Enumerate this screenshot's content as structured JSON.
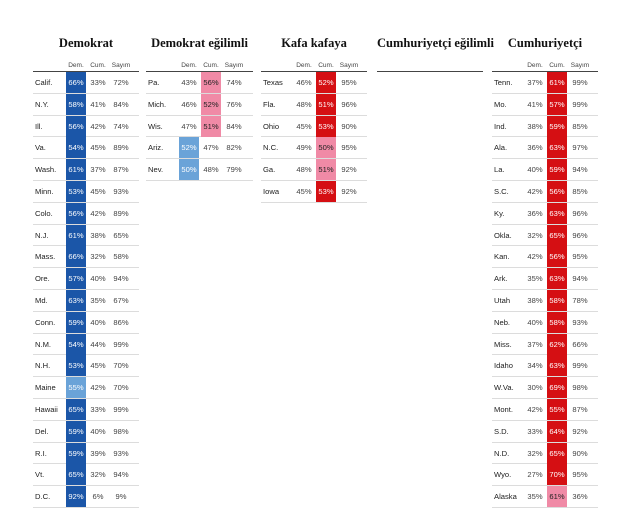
{
  "headers": {
    "dem": "Dem.",
    "rep": "Cum.",
    "count": "Sayım"
  },
  "columns": [
    {
      "title": "Demokrat",
      "rows": [
        {
          "state": "Calif.",
          "dem": "66%",
          "rep": "33%",
          "count": "72%",
          "lead": "dem",
          "shade": "dark"
        },
        {
          "state": "N.Y.",
          "dem": "58%",
          "rep": "41%",
          "count": "84%",
          "lead": "dem",
          "shade": "dark"
        },
        {
          "state": "Ill.",
          "dem": "56%",
          "rep": "42%",
          "count": "74%",
          "lead": "dem",
          "shade": "dark"
        },
        {
          "state": "Va.",
          "dem": "54%",
          "rep": "45%",
          "count": "89%",
          "lead": "dem",
          "shade": "dark"
        },
        {
          "state": "Wash.",
          "dem": "61%",
          "rep": "37%",
          "count": "87%",
          "lead": "dem",
          "shade": "dark"
        },
        {
          "state": "Minn.",
          "dem": "53%",
          "rep": "45%",
          "count": "93%",
          "lead": "dem",
          "shade": "dark"
        },
        {
          "state": "Colo.",
          "dem": "56%",
          "rep": "42%",
          "count": "89%",
          "lead": "dem",
          "shade": "dark"
        },
        {
          "state": "N.J.",
          "dem": "61%",
          "rep": "38%",
          "count": "65%",
          "lead": "dem",
          "shade": "dark"
        },
        {
          "state": "Mass.",
          "dem": "66%",
          "rep": "32%",
          "count": "58%",
          "lead": "dem",
          "shade": "dark"
        },
        {
          "state": "Ore.",
          "dem": "57%",
          "rep": "40%",
          "count": "94%",
          "lead": "dem",
          "shade": "dark"
        },
        {
          "state": "Md.",
          "dem": "63%",
          "rep": "35%",
          "count": "67%",
          "lead": "dem",
          "shade": "dark"
        },
        {
          "state": "Conn.",
          "dem": "59%",
          "rep": "40%",
          "count": "86%",
          "lead": "dem",
          "shade": "dark"
        },
        {
          "state": "N.M.",
          "dem": "54%",
          "rep": "44%",
          "count": "99%",
          "lead": "dem",
          "shade": "dark"
        },
        {
          "state": "N.H.",
          "dem": "53%",
          "rep": "45%",
          "count": "70%",
          "lead": "dem",
          "shade": "dark"
        },
        {
          "state": "Maine",
          "dem": "55%",
          "rep": "42%",
          "count": "70%",
          "lead": "dem",
          "shade": "light"
        },
        {
          "state": "Hawaii",
          "dem": "65%",
          "rep": "33%",
          "count": "99%",
          "lead": "dem",
          "shade": "dark"
        },
        {
          "state": "Del.",
          "dem": "59%",
          "rep": "40%",
          "count": "98%",
          "lead": "dem",
          "shade": "dark"
        },
        {
          "state": "R.I.",
          "dem": "59%",
          "rep": "39%",
          "count": "93%",
          "lead": "dem",
          "shade": "dark"
        },
        {
          "state": "Vt.",
          "dem": "65%",
          "rep": "32%",
          "count": "94%",
          "lead": "dem",
          "shade": "dark"
        },
        {
          "state": "D.C.",
          "dem": "92%",
          "rep": "6%",
          "count": "9%",
          "lead": "dem",
          "shade": "dark"
        }
      ]
    },
    {
      "title": "Demokrat eğilimli",
      "rows": [
        {
          "state": "Pa.",
          "dem": "43%",
          "rep": "56%",
          "count": "74%",
          "lead": "rep",
          "shade": "light"
        },
        {
          "state": "Mich.",
          "dem": "46%",
          "rep": "52%",
          "count": "76%",
          "lead": "rep",
          "shade": "light"
        },
        {
          "state": "Wis.",
          "dem": "47%",
          "rep": "51%",
          "count": "84%",
          "lead": "rep",
          "shade": "light"
        },
        {
          "state": "Ariz.",
          "dem": "52%",
          "rep": "47%",
          "count": "82%",
          "lead": "dem",
          "shade": "light"
        },
        {
          "state": "Nev.",
          "dem": "50%",
          "rep": "48%",
          "count": "79%",
          "lead": "dem",
          "shade": "light"
        }
      ]
    },
    {
      "title": "Kafa kafaya",
      "rows": [
        {
          "state": "Texas",
          "dem": "46%",
          "rep": "52%",
          "count": "95%",
          "lead": "rep",
          "shade": "dark"
        },
        {
          "state": "Fla.",
          "dem": "48%",
          "rep": "51%",
          "count": "96%",
          "lead": "rep",
          "shade": "dark"
        },
        {
          "state": "Ohio",
          "dem": "45%",
          "rep": "53%",
          "count": "90%",
          "lead": "rep",
          "shade": "dark"
        },
        {
          "state": "N.C.",
          "dem": "49%",
          "rep": "50%",
          "count": "95%",
          "lead": "rep",
          "shade": "light"
        },
        {
          "state": "Ga.",
          "dem": "48%",
          "rep": "51%",
          "count": "92%",
          "lead": "rep",
          "shade": "light"
        },
        {
          "state": "Iowa",
          "dem": "45%",
          "rep": "53%",
          "count": "92%",
          "lead": "rep",
          "shade": "dark"
        }
      ]
    },
    {
      "title": "Cumhuriyetçi eğilimli",
      "rows": []
    },
    {
      "title": "Cumhuriyetçi",
      "rows": [
        {
          "state": "Tenn.",
          "dem": "37%",
          "rep": "61%",
          "count": "99%",
          "lead": "rep",
          "shade": "dark"
        },
        {
          "state": "Mo.",
          "dem": "41%",
          "rep": "57%",
          "count": "99%",
          "lead": "rep",
          "shade": "dark"
        },
        {
          "state": "Ind.",
          "dem": "38%",
          "rep": "59%",
          "count": "85%",
          "lead": "rep",
          "shade": "dark"
        },
        {
          "state": "Ala.",
          "dem": "36%",
          "rep": "63%",
          "count": "97%",
          "lead": "rep",
          "shade": "dark"
        },
        {
          "state": "La.",
          "dem": "40%",
          "rep": "59%",
          "count": "94%",
          "lead": "rep",
          "shade": "dark"
        },
        {
          "state": "S.C.",
          "dem": "42%",
          "rep": "56%",
          "count": "85%",
          "lead": "rep",
          "shade": "dark"
        },
        {
          "state": "Ky.",
          "dem": "36%",
          "rep": "63%",
          "count": "96%",
          "lead": "rep",
          "shade": "dark"
        },
        {
          "state": "Okla.",
          "dem": "32%",
          "rep": "65%",
          "count": "96%",
          "lead": "rep",
          "shade": "dark"
        },
        {
          "state": "Kan.",
          "dem": "42%",
          "rep": "56%",
          "count": "95%",
          "lead": "rep",
          "shade": "dark"
        },
        {
          "state": "Ark.",
          "dem": "35%",
          "rep": "63%",
          "count": "94%",
          "lead": "rep",
          "shade": "dark"
        },
        {
          "state": "Utah",
          "dem": "38%",
          "rep": "58%",
          "count": "78%",
          "lead": "rep",
          "shade": "dark"
        },
        {
          "state": "Neb.",
          "dem": "40%",
          "rep": "58%",
          "count": "93%",
          "lead": "rep",
          "shade": "dark"
        },
        {
          "state": "Miss.",
          "dem": "37%",
          "rep": "62%",
          "count": "66%",
          "lead": "rep",
          "shade": "dark"
        },
        {
          "state": "Idaho",
          "dem": "34%",
          "rep": "63%",
          "count": "99%",
          "lead": "rep",
          "shade": "dark"
        },
        {
          "state": "W.Va.",
          "dem": "30%",
          "rep": "69%",
          "count": "98%",
          "lead": "rep",
          "shade": "dark"
        },
        {
          "state": "Mont.",
          "dem": "42%",
          "rep": "55%",
          "count": "87%",
          "lead": "rep",
          "shade": "dark"
        },
        {
          "state": "S.D.",
          "dem": "33%",
          "rep": "64%",
          "count": "92%",
          "lead": "rep",
          "shade": "dark"
        },
        {
          "state": "N.D.",
          "dem": "32%",
          "rep": "65%",
          "count": "90%",
          "lead": "rep",
          "shade": "dark"
        },
        {
          "state": "Wyo.",
          "dem": "27%",
          "rep": "70%",
          "count": "95%",
          "lead": "rep",
          "shade": "dark"
        },
        {
          "state": "Alaska",
          "dem": "35%",
          "rep": "61%",
          "count": "36%",
          "lead": "rep",
          "shade": "light"
        }
      ]
    }
  ],
  "colors": {
    "dem_dark": "#1b56a8",
    "dem_light": "#6aa3d8",
    "rep_dark": "#d50f13",
    "rep_light": "#f08aa6"
  }
}
